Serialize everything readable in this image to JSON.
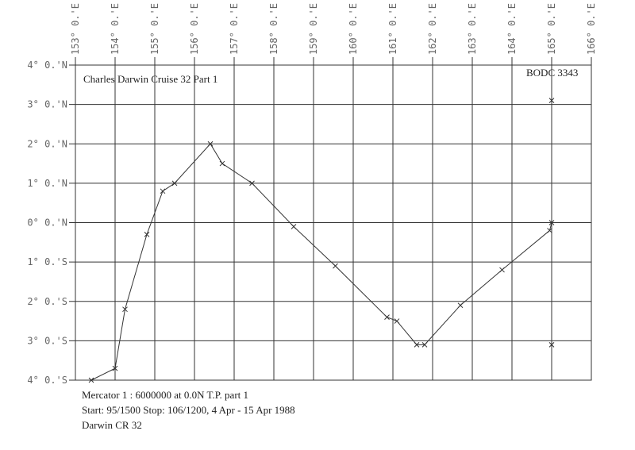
{
  "chart_data": {
    "type": "line",
    "title": "Charles Darwin Cruise 32 Part 1",
    "annotation": "BODC 3343",
    "notes": [
      "Mercator 1 : 6000000 at 0.0N T.P. part 1",
      "Start: 95/1500 Stop: 106/1200, 4 Apr - 15 Apr 1988",
      "Darwin CR 32"
    ],
    "x": [
      153.4,
      154.0,
      154.25,
      154.8,
      155.2,
      155.5,
      156.4,
      156.7,
      157.45,
      158.5,
      159.55,
      160.85,
      161.1,
      161.6,
      161.8,
      162.7,
      163.75,
      164.95,
      165.0,
      165.0,
      165.0
    ],
    "series": [
      {
        "color": "#333333",
        "values": [
          -4.0,
          -3.7,
          -2.2,
          -0.3,
          0.8,
          1.0,
          2.0,
          1.5,
          1.0,
          -0.1,
          -1.1,
          -2.4,
          -2.5,
          -3.1,
          -3.1,
          -2.1,
          -1.2,
          -0.2,
          0.0,
          3.1,
          -3.1
        ]
      }
    ],
    "xlim": [
      153,
      166
    ],
    "ylim": [
      -4,
      4
    ],
    "xticks": [
      {
        "value": 153,
        "label": "153° 0.'E"
      },
      {
        "value": 154,
        "label": "154° 0.'E"
      },
      {
        "value": 155,
        "label": "155° 0.'E"
      },
      {
        "value": 156,
        "label": "156° 0.'E"
      },
      {
        "value": 157,
        "label": "157° 0.'E"
      },
      {
        "value": 158,
        "label": "158° 0.'E"
      },
      {
        "value": 159,
        "label": "159° 0.'E"
      },
      {
        "value": 160,
        "label": "160° 0.'E"
      },
      {
        "value": 161,
        "label": "161° 0.'E"
      },
      {
        "value": 162,
        "label": "162° 0.'E"
      },
      {
        "value": 163,
        "label": "163° 0.'E"
      },
      {
        "value": 164,
        "label": "164° 0.'E"
      },
      {
        "value": 165,
        "label": "165° 0.'E"
      },
      {
        "value": 166,
        "label": "166° 0.'E"
      }
    ],
    "yticks": [
      {
        "value": 4,
        "label": "4° 0.'N"
      },
      {
        "value": 3,
        "label": "3° 0.'N"
      },
      {
        "value": 2,
        "label": "2° 0.'N"
      },
      {
        "value": 1,
        "label": "1° 0.'N"
      },
      {
        "value": 0,
        "label": "0° 0.'N"
      },
      {
        "value": -1,
        "label": "1° 0.'S"
      },
      {
        "value": -2,
        "label": "2° 0.'S"
      },
      {
        "value": -3,
        "label": "3° 0.'S"
      },
      {
        "value": -4,
        "label": "4° 0.'S"
      }
    ],
    "grid": true
  }
}
